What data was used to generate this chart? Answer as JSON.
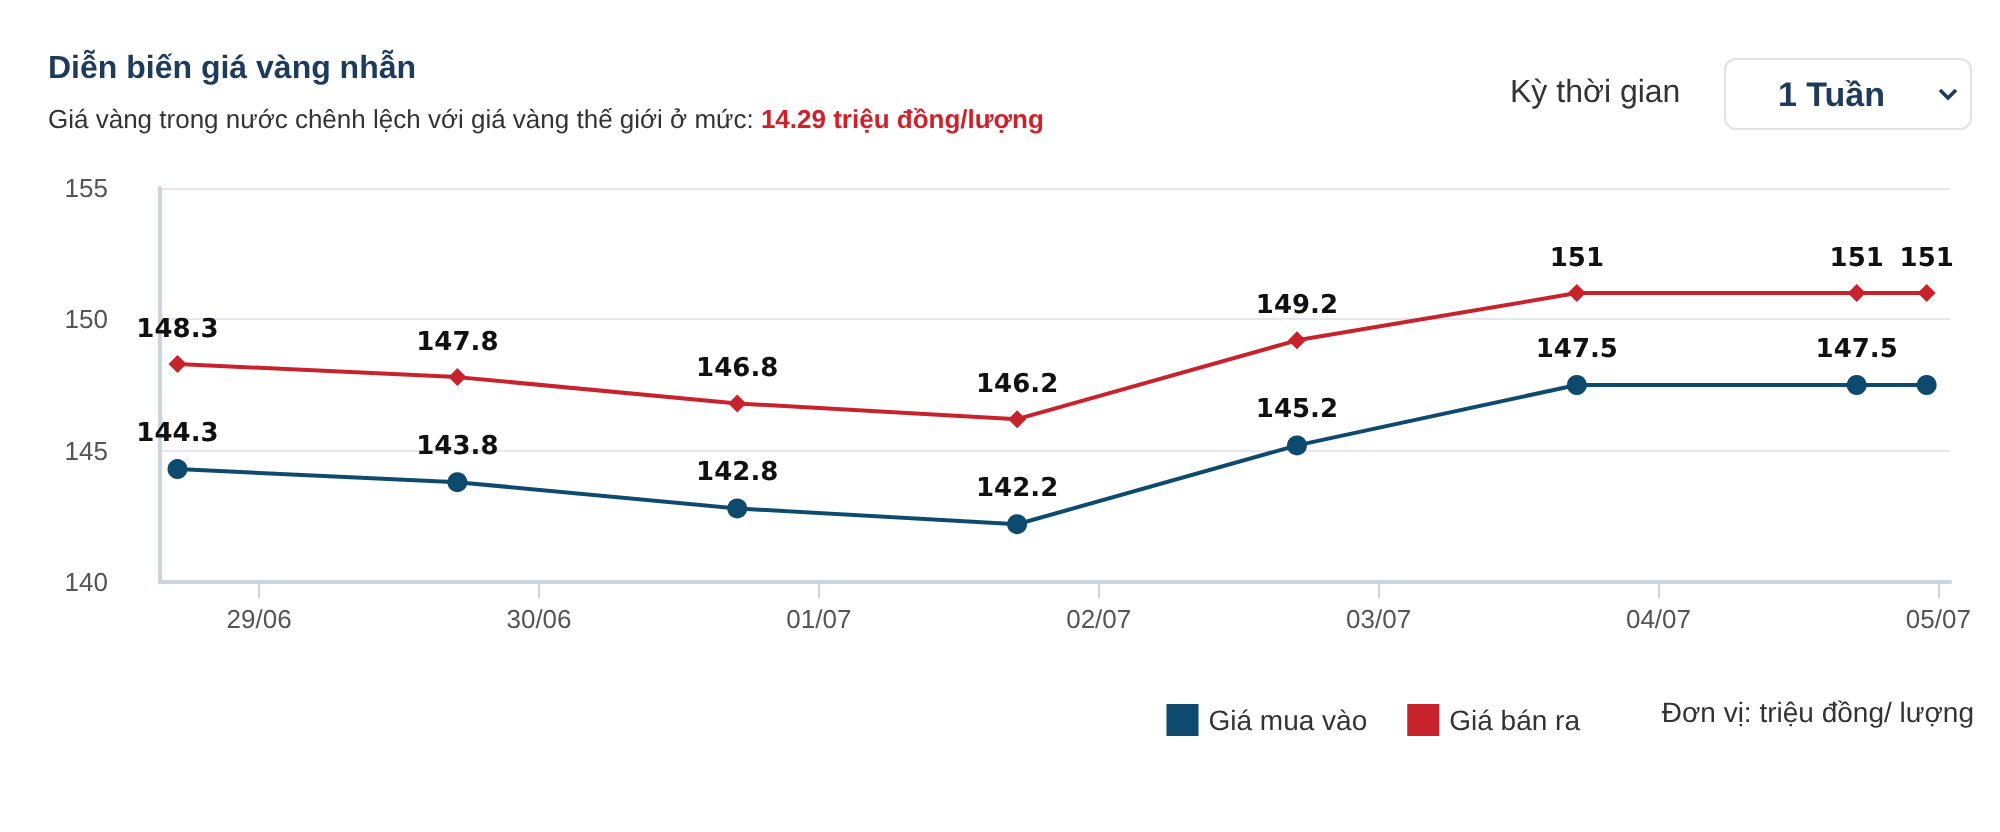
{
  "chart_data": {
    "type": "line",
    "title": "Diễn biến giá vàng nhẫn",
    "subtitle": "Giá vàng trong nước chênh lệch với giá vàng thế giới ở mức:",
    "annotations": [
      "14.29 triệu đồng/lượng",
      "Kỳ thời gian",
      "1 Tuần",
      "Đơn vị: triệu đồng/ lượng"
    ],
    "x": [
      "--06-28T17:00",
      "--06-29T17:00",
      "--06-30T17:00",
      "--07-01T17:00",
      "--07-02T17:00",
      "--07-03T17:00",
      "--07-04T17:00",
      "--07-04T23:00"
    ],
    "series": [
      {
        "name": "Giá mua vào",
        "color": "#0e4a6e",
        "marker": "circle",
        "values": [
          144.3,
          143.8,
          142.8,
          142.2,
          145.2,
          147.5,
          147.5,
          147.5
        ],
        "value_labels": [
          "144.3",
          "143.8",
          "142.8",
          "142.2",
          "145.2",
          "147.5",
          "147.5",
          null
        ]
      },
      {
        "name": "Giá bán ra",
        "color": "#c8232c",
        "marker": "diamond",
        "values": [
          148.3,
          147.8,
          146.8,
          146.2,
          149.2,
          151,
          151,
          151
        ],
        "value_labels": [
          "148.3",
          "147.8",
          "146.8",
          "146.2",
          "149.2",
          "151",
          "151",
          "151"
        ]
      }
    ],
    "xlim": [
      "--06-28T15:30",
      "--07-05T01:00"
    ],
    "xticks": [
      {
        "value": "--06-29",
        "label": "29/06"
      },
      {
        "value": "--06-30",
        "label": "30/06"
      },
      {
        "value": "--07-01",
        "label": "01/07"
      },
      {
        "value": "--07-02",
        "label": "02/07"
      },
      {
        "value": "--07-03",
        "label": "03/07"
      },
      {
        "value": "--07-04",
        "label": "04/07"
      },
      {
        "value": "--07-05",
        "label": "05/07"
      }
    ],
    "ylim": [
      140,
      155
    ],
    "yticks": [
      140,
      145,
      150,
      155
    ],
    "grid": "y",
    "legend": "bottom right",
    "line_style": "solid"
  }
}
